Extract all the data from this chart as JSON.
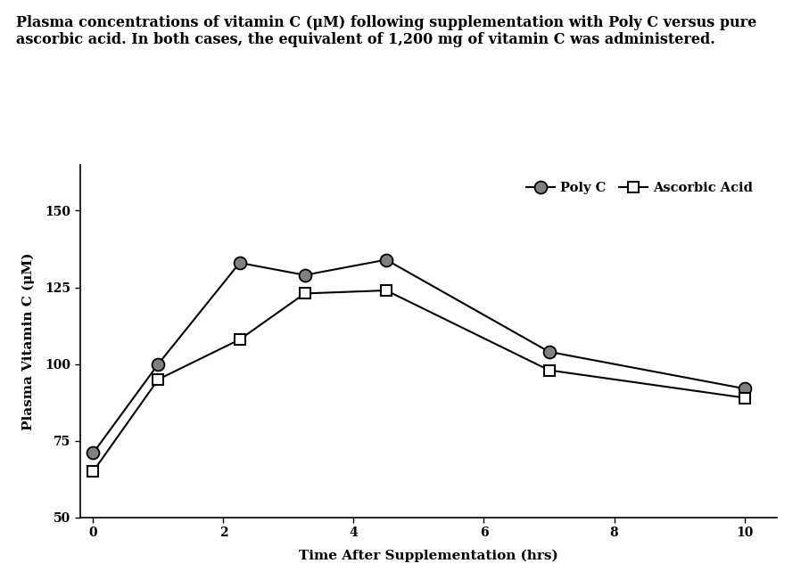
{
  "title_line1": "Plasma concentrations of vitamin C (μM) following supplementation with Poly C versus pure",
  "title_line2": "ascorbic acid. In both cases, the equivalent of 1,200 mg of vitamin C was administered.",
  "xlabel": "Time After Supplementation (hrs)",
  "ylabel": "Plasma Vitamin C (μM)",
  "polyc_x": [
    0,
    1,
    2.25,
    3.25,
    4.5,
    7,
    10
  ],
  "polyc_y": [
    71,
    100,
    133,
    129,
    134,
    104,
    92
  ],
  "ascorbic_x": [
    0,
    1,
    2.25,
    3.25,
    4.5,
    7,
    10
  ],
  "ascorbic_y": [
    65,
    95,
    108,
    123,
    124,
    98,
    89
  ],
  "polyc_color": "#808080",
  "line_color": "#000000",
  "ylim": [
    50,
    165
  ],
  "xlim": [
    -0.2,
    10.5
  ],
  "yticks": [
    50,
    75,
    100,
    125,
    150
  ],
  "xticks": [
    0,
    2,
    4,
    6,
    8,
    10
  ],
  "legend_polyc": "Poly C",
  "legend_ascorbic": "Ascorbic Acid",
  "title_fontsize": 11.5,
  "axis_label_fontsize": 11,
  "tick_fontsize": 10,
  "legend_fontsize": 10.5,
  "background_color": "#ffffff"
}
